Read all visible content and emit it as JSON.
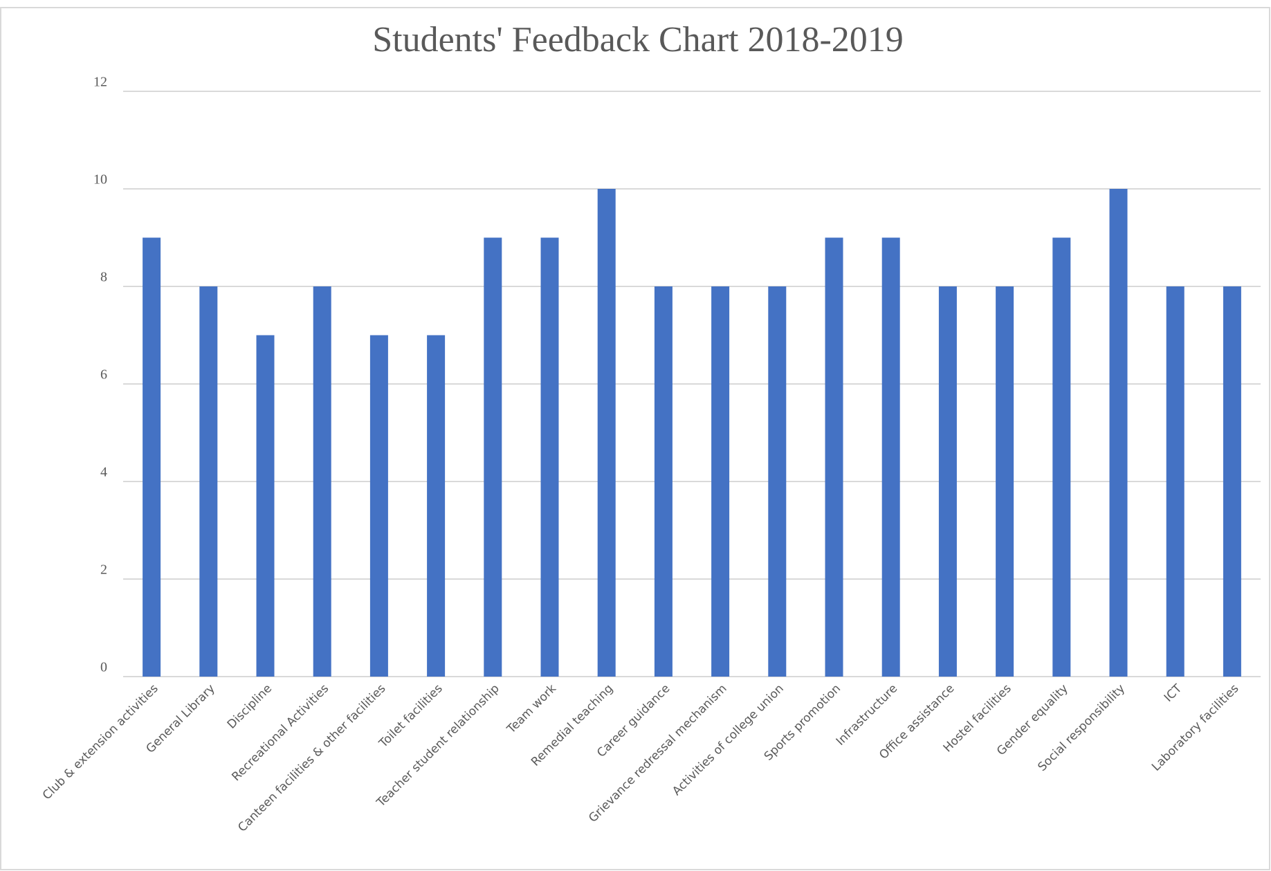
{
  "chart_data": {
    "type": "bar",
    "title": "Students' Feedback Chart  2018-2019",
    "categories": [
      "Club & extension activities",
      "General Library",
      "Discipline",
      "Recreational Activities",
      "Canteen facilities & other facilities",
      "Toilet facilities",
      "Teacher student relationship",
      "Team work",
      "Remedial teaching",
      "Career guidance",
      "Grievance redressal mechanism",
      "Activities of college union",
      "Sports promotion",
      "Infrastructure",
      "Office assistance",
      "Hostel facilities",
      "Gender equality",
      "Social responsibility",
      "ICT",
      "Laboratory facilities"
    ],
    "values": [
      9,
      8,
      7,
      8,
      7,
      7,
      9,
      9,
      10,
      8,
      8,
      8,
      9,
      9,
      8,
      8,
      9,
      10,
      8,
      8
    ],
    "color": "#4472c4",
    "ylim": [
      0,
      12
    ],
    "yticks": [
      0,
      2,
      4,
      6,
      8,
      10,
      12
    ],
    "grid": true
  }
}
